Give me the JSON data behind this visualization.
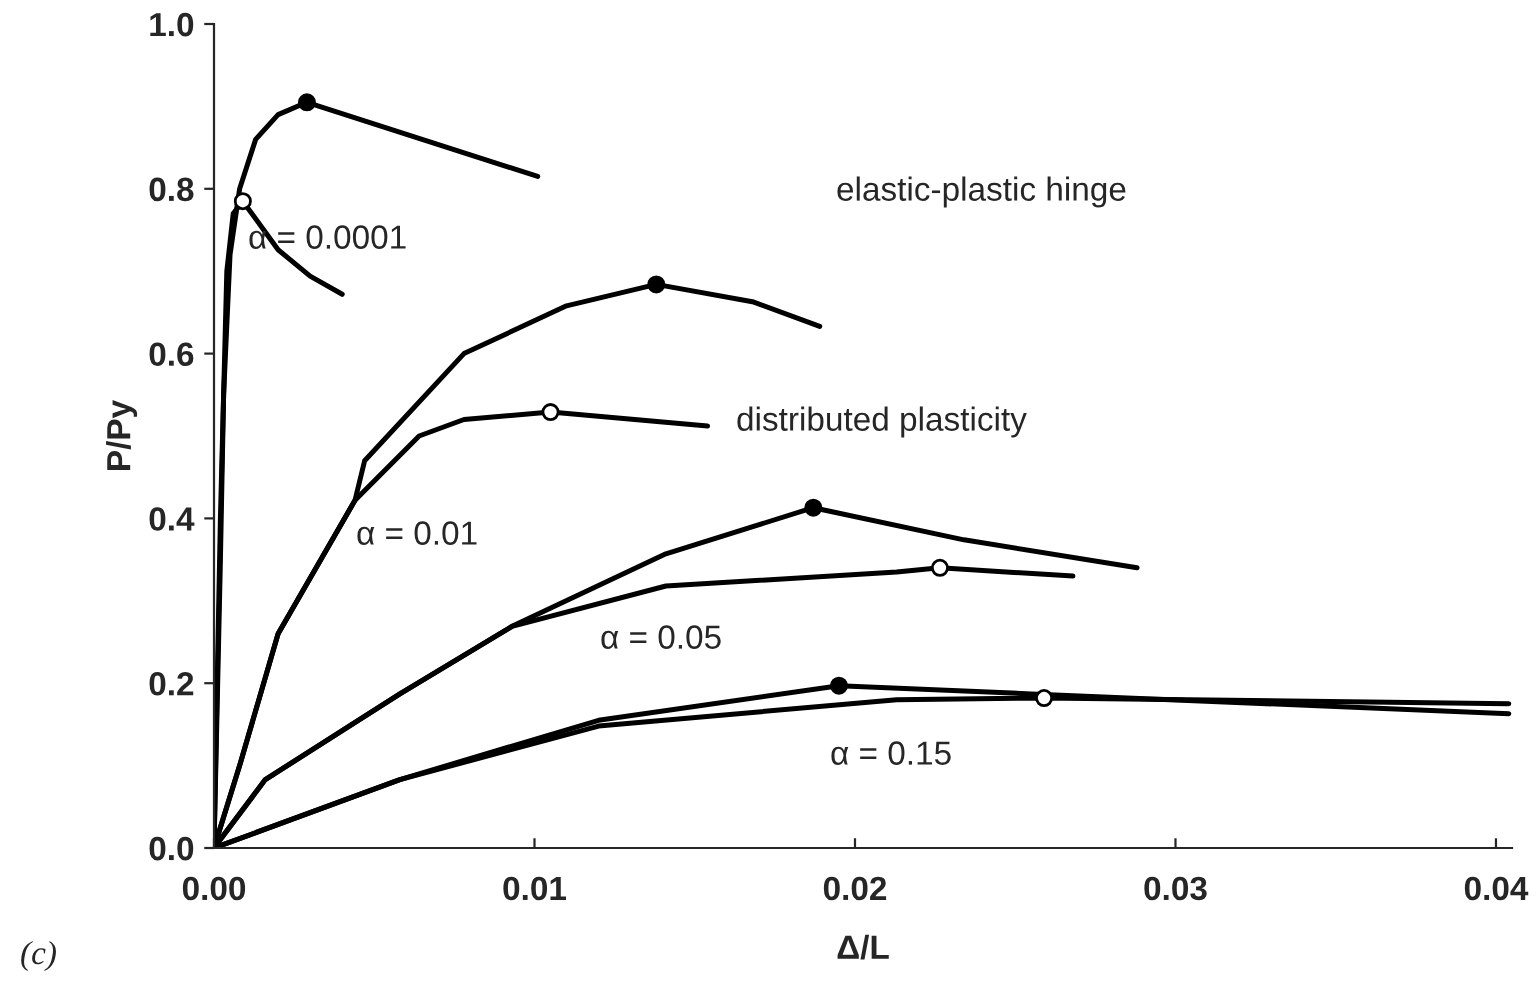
{
  "chart_data": {
    "type": "line",
    "xlabel": "Δ/L",
    "ylabel": "P/Py",
    "xlim": [
      0,
      0.0405
    ],
    "ylim": [
      0,
      1.0
    ],
    "xticks": [
      {
        "value": 0,
        "label": "0.00"
      },
      {
        "value": 0.01,
        "label": "0.01"
      },
      {
        "value": 0.02,
        "label": "0.02"
      },
      {
        "value": 0.03,
        "label": "0.03"
      },
      {
        "value": 0.04,
        "label": "0.04"
      }
    ],
    "yticks": [
      {
        "value": 0,
        "label": "0.0"
      },
      {
        "value": 0.2,
        "label": "0.2"
      },
      {
        "value": 0.4,
        "label": "0.4"
      },
      {
        "value": 0.6,
        "label": "0.6"
      },
      {
        "value": 0.8,
        "label": "0.8"
      },
      {
        "value": 1.0,
        "label": "1.0"
      }
    ],
    "grid": false,
    "legend": false,
    "marker": "none",
    "line_style": "solid",
    "series": [
      {
        "color": "#000000",
        "x": [
          0,
          0.0002,
          0.0003,
          0.0005,
          0.0008,
          0.0013,
          0.002,
          0.0029,
          0.0101
        ],
        "values": [
          0,
          0.35,
          0.55,
          0.72,
          0.8,
          0.86,
          0.89,
          0.905,
          0.815
        ]
      },
      {
        "color": "#000000",
        "x": [
          0,
          0.0002,
          0.0004,
          0.0006,
          0.0009,
          0.002,
          0.003,
          0.004
        ],
        "values": [
          0,
          0.4,
          0.7,
          0.77,
          0.785,
          0.726,
          0.694,
          0.672
        ]
      },
      {
        "color": "#000000",
        "x": [
          0,
          0.0008,
          0.002,
          0.0044,
          0.0047,
          0.0078,
          0.011,
          0.0138,
          0.0168,
          0.0189
        ],
        "values": [
          0,
          0.1,
          0.26,
          0.422,
          0.47,
          0.6,
          0.658,
          0.684,
          0.663,
          0.633
        ]
      },
      {
        "color": "#000000",
        "x": [
          0,
          0.0008,
          0.002,
          0.0044,
          0.0064,
          0.0078,
          0.0105,
          0.0154
        ],
        "values": [
          0,
          0.1,
          0.26,
          0.422,
          0.5,
          0.52,
          0.529,
          0.512
        ]
      },
      {
        "color": "#000000",
        "x": [
          0,
          0.0016,
          0.0058,
          0.0093,
          0.0141,
          0.0187,
          0.0234,
          0.0288
        ],
        "values": [
          0,
          0.083,
          0.187,
          0.269,
          0.357,
          0.413,
          0.374,
          0.34
        ]
      },
      {
        "color": "#000000",
        "x": [
          0,
          0.0016,
          0.0058,
          0.0093,
          0.0141,
          0.0213,
          0.02265,
          0.0268
        ],
        "values": [
          0,
          0.083,
          0.187,
          0.269,
          0.318,
          0.335,
          0.34,
          0.33
        ]
      },
      {
        "color": "#000000",
        "x": [
          0,
          0.0058,
          0.012,
          0.0195,
          0.0255,
          0.0404
        ],
        "values": [
          0,
          0.083,
          0.155,
          0.197,
          0.187,
          0.163
        ]
      },
      {
        "color": "#000000",
        "x": [
          0,
          0.0058,
          0.012,
          0.0213,
          0.0259,
          0.0404
        ],
        "values": [
          0,
          0.083,
          0.148,
          0.18,
          0.182,
          0.175
        ]
      },
      {
        "type": "scatter",
        "marker": "circle",
        "color": "#000000",
        "x": [
          0.0029,
          0.0138,
          0.0187,
          0.0195
        ],
        "values": [
          0.905,
          0.684,
          0.413,
          0.197
        ]
      },
      {
        "type": "scatter",
        "marker": "circle",
        "color": "#ffffff",
        "x": [
          0.0009,
          0.0105,
          0.02265,
          0.0259
        ],
        "values": [
          0.785,
          0.529,
          0.34,
          0.182
        ]
      }
    ],
    "annotations": [
      "α = 0.0001",
      "α = 0.01",
      "α = 0.05",
      "α = 0.15",
      "elastic-plastic hinge",
      "distributed plasticity",
      "(c)"
    ]
  }
}
